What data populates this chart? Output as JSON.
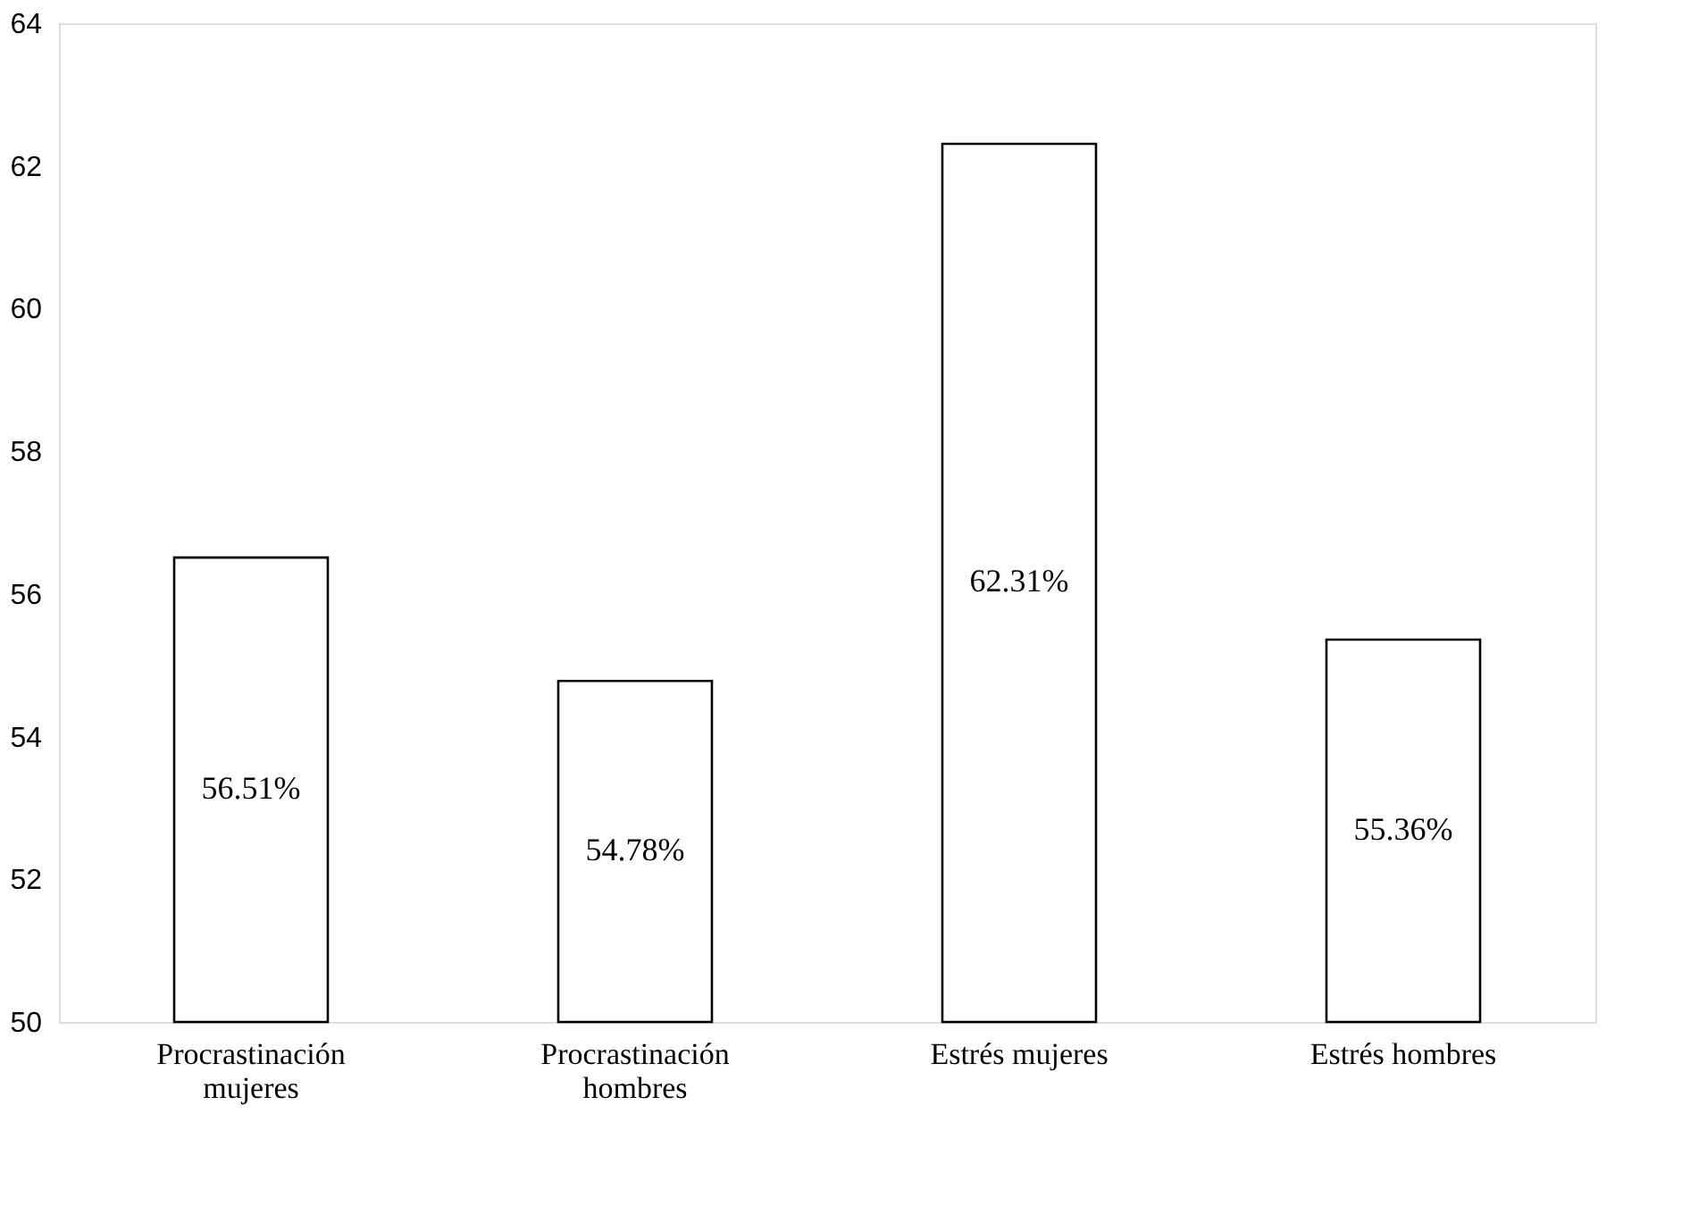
{
  "chart_data": {
    "type": "bar",
    "categories": [
      "Procrastinación mujeres",
      "Procrastinación hombres",
      "Estrés mujeres",
      "Estrés hombres"
    ],
    "values": [
      56.51,
      54.78,
      62.31,
      55.36
    ],
    "value_labels": [
      "56.51%",
      "54.78%",
      "62.31%",
      "55.36%"
    ],
    "color": "#ffffff",
    "ylim": [
      50,
      64
    ],
    "yticks": [
      50,
      52,
      54,
      56,
      58,
      60,
      62,
      64
    ],
    "grid": false
  }
}
